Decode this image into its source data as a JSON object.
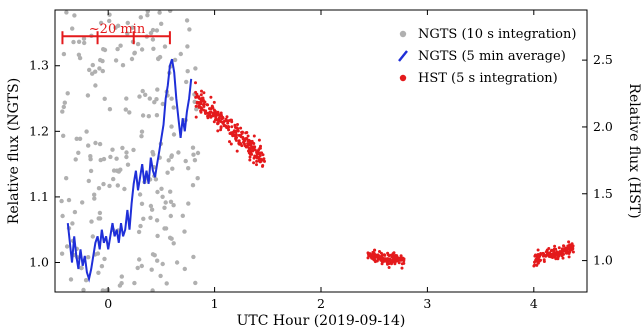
{
  "chart_data": {
    "type": "scatter",
    "xlabel": "UTC Hour (2019-09-14)",
    "ylabel_left": "Relative flux (NGTS)",
    "ylabel_right": "Relative flux (HST)",
    "xlim": [
      -0.5,
      4.5
    ],
    "ylim_left": [
      0.955,
      1.385
    ],
    "ylim_right": [
      0.765,
      2.875
    ],
    "x_ticks": [
      "0",
      "1",
      "2",
      "3",
      "4"
    ],
    "x_tick_values": [
      0,
      1,
      2,
      3,
      4
    ],
    "y_left_ticks": [
      "1.0",
      "1.1",
      "1.2",
      "1.3"
    ],
    "y_left_tick_values": [
      1.0,
      1.1,
      1.2,
      1.3
    ],
    "y_right_ticks": [
      "1.0",
      "1.5",
      "2.0",
      "2.5"
    ],
    "y_right_tick_values": [
      1.0,
      1.5,
      2.0,
      2.5
    ],
    "legend_position": "top-right",
    "annotation": {
      "text": "~20 min",
      "bracket_x": [
        -0.43,
        0.58
      ],
      "bracket_ticks_x": [
        -0.43,
        -0.1,
        0.24,
        0.58
      ],
      "y": 1.345
    },
    "series": [
      {
        "name": "NGTS (10 s integration)",
        "color": "#b0b0b0",
        "axis": "left",
        "kind": "points",
        "x_range": [
          -0.45,
          0.85
        ],
        "y_spread": [
          0.955,
          1.385
        ]
      },
      {
        "name": "NGTS (5 min average)",
        "color": "#1f2fd8",
        "axis": "left",
        "kind": "line",
        "points": [
          [
            -0.38,
            1.06
          ],
          [
            -0.36,
            1.03
          ],
          [
            -0.34,
            1.0
          ],
          [
            -0.32,
            1.04
          ],
          [
            -0.3,
            1.01
          ],
          [
            -0.28,
            0.99
          ],
          [
            -0.26,
            1.02
          ],
          [
            -0.24,
            0.995
          ],
          [
            -0.22,
            1.01
          ],
          [
            -0.2,
            0.985
          ],
          [
            -0.18,
            0.975
          ],
          [
            -0.16,
            0.99
          ],
          [
            -0.14,
            1.01
          ],
          [
            -0.12,
            1.03
          ],
          [
            -0.1,
            1.04
          ],
          [
            -0.08,
            1.02
          ],
          [
            -0.06,
            1.05
          ],
          [
            -0.04,
            1.03
          ],
          [
            -0.02,
            1.04
          ],
          [
            0.0,
            1.02
          ],
          [
            0.02,
            1.04
          ],
          [
            0.04,
            1.06
          ],
          [
            0.06,
            1.04
          ],
          [
            0.08,
            1.05
          ],
          [
            0.1,
            1.03
          ],
          [
            0.12,
            1.06
          ],
          [
            0.14,
            1.04
          ],
          [
            0.16,
            1.05
          ],
          [
            0.18,
            1.08
          ],
          [
            0.2,
            1.05
          ],
          [
            0.22,
            1.09
          ],
          [
            0.24,
            1.12
          ],
          [
            0.26,
            1.14
          ],
          [
            0.28,
            1.11
          ],
          [
            0.3,
            1.13
          ],
          [
            0.32,
            1.15
          ],
          [
            0.34,
            1.12
          ],
          [
            0.36,
            1.14
          ],
          [
            0.38,
            1.12
          ],
          [
            0.4,
            1.16
          ],
          [
            0.42,
            1.14
          ],
          [
            0.44,
            1.13
          ],
          [
            0.46,
            1.15
          ],
          [
            0.48,
            1.17
          ],
          [
            0.5,
            1.19
          ],
          [
            0.52,
            1.21
          ],
          [
            0.54,
            1.25
          ],
          [
            0.56,
            1.27
          ],
          [
            0.58,
            1.3
          ],
          [
            0.6,
            1.31
          ],
          [
            0.62,
            1.29
          ],
          [
            0.64,
            1.25
          ],
          [
            0.66,
            1.22
          ],
          [
            0.68,
            1.19
          ],
          [
            0.7,
            1.22
          ],
          [
            0.72,
            1.2
          ],
          [
            0.74,
            1.23
          ],
          [
            0.76,
            1.25
          ],
          [
            0.78,
            1.28
          ]
        ]
      },
      {
        "name": "HST (5 s integration)",
        "color": "#e41a1c",
        "axis": "right",
        "kind": "points",
        "segments": [
          {
            "x": [
              0.82,
              1.47
            ],
            "y_start": 2.22,
            "y_end": 1.75,
            "spread": 0.09
          },
          {
            "x": [
              2.44,
              2.78
            ],
            "y_start": 1.03,
            "y_end": 1.0,
            "spread": 0.05
          },
          {
            "x": [
              4.0,
              4.38
            ],
            "y_start": 1.0,
            "y_end": 1.1,
            "spread": 0.05
          }
        ]
      }
    ]
  }
}
